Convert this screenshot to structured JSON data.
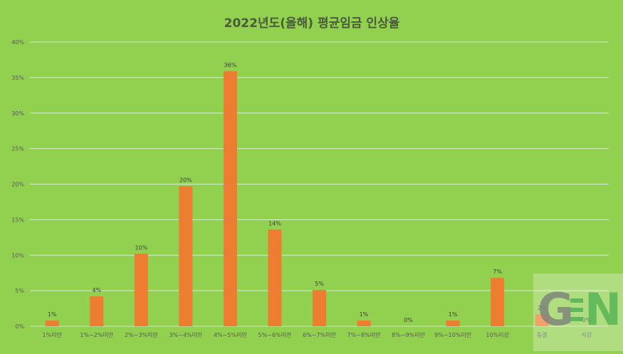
{
  "chart_data": {
    "type": "bar",
    "title": "2022년도(올해) 평균임금 인상율",
    "xlabel": "",
    "ylabel": "",
    "categories": [
      "1%미만",
      "1%~2%미만",
      "2%~3%미만",
      "3%~4%미만",
      "4%~5%미만",
      "5%~6%미만",
      "6%~7%미만",
      "7%~8%미만",
      "8%~9%미만",
      "9%~10%미만",
      "10%이상",
      "동결",
      "삭감"
    ],
    "values": [
      0.8,
      4.2,
      10.2,
      19.7,
      35.9,
      13.6,
      5.1,
      0.8,
      0.0,
      0.8,
      6.8,
      1.7,
      0.0
    ],
    "data_labels": [
      "1%",
      "4%",
      "10%",
      "20%",
      "36%",
      "14%",
      "5%",
      "1%",
      "0%",
      "1%",
      "7%",
      "2%",
      "0%"
    ],
    "ylim": [
      0,
      40
    ],
    "yticks": [
      0,
      5,
      10,
      15,
      20,
      25,
      30,
      35,
      40
    ],
    "ytick_labels": [
      "0%",
      "5%",
      "10%",
      "15%",
      "20%",
      "25%",
      "30%",
      "35%",
      "40%"
    ],
    "grid": true,
    "legend": "none",
    "colors": {
      "background": "#92d050",
      "bar": "#ed7d31",
      "grid": "#d9ecc9",
      "text": "#595959"
    }
  },
  "watermark": {
    "text": "GEN",
    "colors": [
      "#7a7a7a",
      "#4caf50"
    ]
  }
}
